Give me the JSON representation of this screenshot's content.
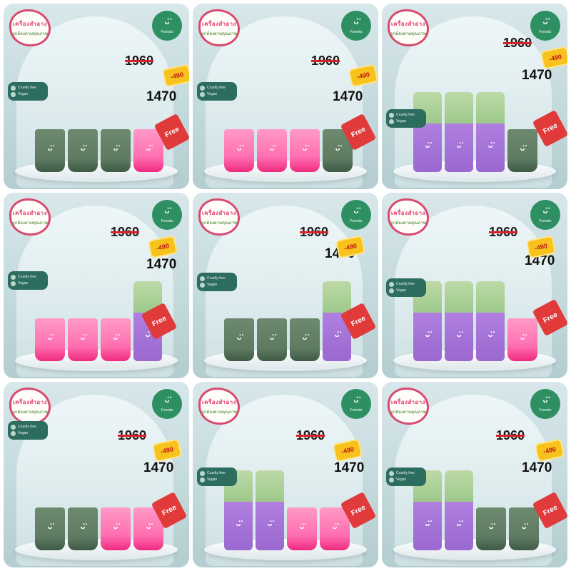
{
  "sticker": {
    "top": "เครื่องสำอาง",
    "bottom": "ถูกต้องตามคุณภาพ"
  },
  "brand": {
    "face": "ᵕ̈",
    "name": "Foresto"
  },
  "badges": [
    "Cruelty free",
    "Vegan"
  ],
  "price": {
    "old": "1960",
    "discount": "-490",
    "new": "1470"
  },
  "free_label": "Free",
  "colors": {
    "accent_green": "#2e8f63",
    "free_red": "#e03a3a",
    "discount_yellow": "#f7c21b"
  },
  "tiles": [
    {
      "products": [
        "green-tube",
        "green-tube",
        "green-tube",
        "pink-tube"
      ]
    },
    {
      "products": [
        "pink-tube",
        "pink-tube",
        "pink-tube",
        "green-tube"
      ]
    },
    {
      "products": [
        "purple-bottle",
        "purple-bottle",
        "purple-bottle",
        "green-tube"
      ]
    },
    {
      "products": [
        "pink-tube",
        "pink-tube",
        "pink-tube",
        "purple-bottle"
      ]
    },
    {
      "products": [
        "green-tube",
        "green-tube",
        "green-tube",
        "purple-bottle"
      ]
    },
    {
      "products": [
        "purple-bottle",
        "purple-bottle",
        "purple-bottle",
        "pink-tube"
      ]
    },
    {
      "products": [
        "green-tube",
        "green-tube",
        "pink-tube",
        "pink-tube"
      ]
    },
    {
      "products": [
        "purple-bottle",
        "purple-bottle",
        "pink-tube",
        "pink-tube"
      ]
    },
    {
      "products": [
        "purple-bottle",
        "purple-bottle",
        "green-tube",
        "green-tube"
      ]
    }
  ]
}
